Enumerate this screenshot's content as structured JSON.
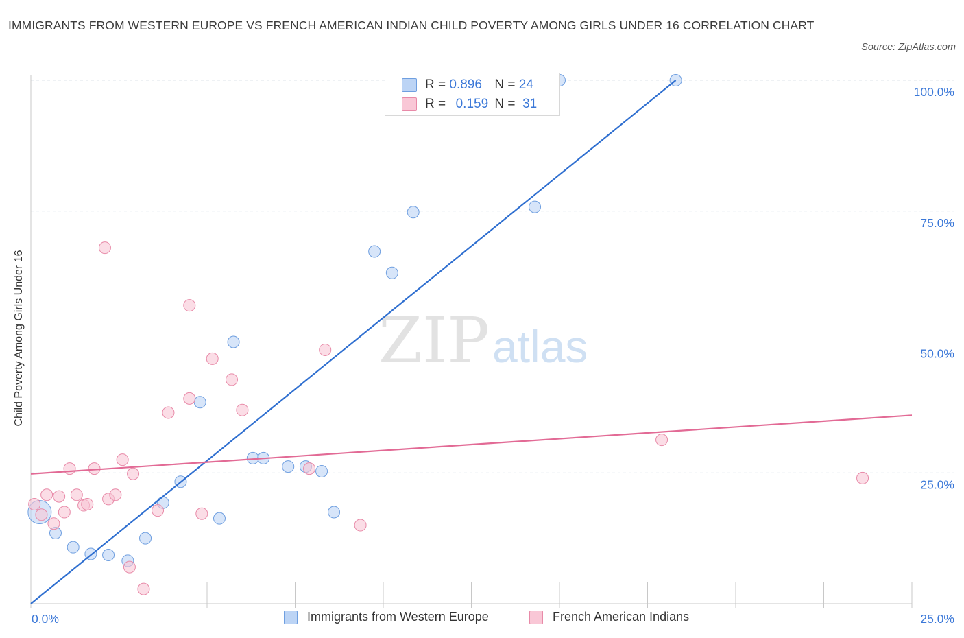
{
  "title": "IMMIGRANTS FROM WESTERN EUROPE VS FRENCH AMERICAN INDIAN CHILD POVERTY AMONG GIRLS UNDER 16 CORRELATION CHART",
  "source": "Source: ZipAtlas.com",
  "watermark": {
    "zip": "ZIP",
    "atlas": "atlas"
  },
  "legend": {
    "r_label": "R =",
    "n_label": "N =",
    "rows": [
      {
        "r": "0.896",
        "n": "24"
      },
      {
        "r": "0.159",
        "n": "31"
      }
    ]
  },
  "colors": {
    "blue_fill": "#bcd4f5",
    "blue_stroke": "#6f9fe0",
    "blue_line": "#2f6fd0",
    "pink_fill": "#f9c7d6",
    "pink_stroke": "#e88aa8",
    "pink_line": "#e26a95",
    "tick_label": "#3b78d8",
    "grid": "#dde3ea"
  },
  "chart_data": {
    "type": "scatter",
    "title": "IMMIGRANTS FROM WESTERN EUROPE VS FRENCH AMERICAN INDIAN CHILD POVERTY AMONG GIRLS UNDER 16 CORRELATION CHART",
    "xlabel": "",
    "ylabel": "Child Poverty Among Girls Under 16",
    "xlim": [
      0,
      25
    ],
    "ylim": [
      0,
      100
    ],
    "x_tick_labels": [
      "0.0%",
      "25.0%"
    ],
    "y_tick_labels": [
      "100.0%",
      "75.0%",
      "50.0%",
      "25.0%"
    ],
    "y_ticks": [
      100,
      75,
      50,
      25
    ],
    "grid": true,
    "legend_position": "top-center",
    "series": [
      {
        "name": "Immigrants from Western Europe",
        "color": "blue",
        "trend": {
          "x": [
            0,
            18.3
          ],
          "y": [
            0,
            100
          ]
        },
        "points": [
          {
            "x": 0.25,
            "y": 17.5,
            "big": true
          },
          {
            "x": 0.7,
            "y": 13.5
          },
          {
            "x": 1.2,
            "y": 10.8
          },
          {
            "x": 1.7,
            "y": 9.5
          },
          {
            "x": 2.2,
            "y": 9.3
          },
          {
            "x": 2.75,
            "y": 8.2
          },
          {
            "x": 3.25,
            "y": 12.5
          },
          {
            "x": 3.75,
            "y": 19.3
          },
          {
            "x": 4.25,
            "y": 23.3
          },
          {
            "x": 4.8,
            "y": 38.5
          },
          {
            "x": 5.35,
            "y": 16.3
          },
          {
            "x": 5.75,
            "y": 50.0
          },
          {
            "x": 6.3,
            "y": 27.8
          },
          {
            "x": 6.6,
            "y": 27.8
          },
          {
            "x": 7.3,
            "y": 26.2
          },
          {
            "x": 7.8,
            "y": 26.2
          },
          {
            "x": 8.25,
            "y": 25.3
          },
          {
            "x": 8.6,
            "y": 17.5
          },
          {
            "x": 9.75,
            "y": 67.3
          },
          {
            "x": 10.25,
            "y": 63.2
          },
          {
            "x": 10.85,
            "y": 74.8
          },
          {
            "x": 14.3,
            "y": 75.8
          },
          {
            "x": 15.0,
            "y": 100.0
          },
          {
            "x": 18.3,
            "y": 100.0
          }
        ]
      },
      {
        "name": "French American Indians",
        "color": "pink",
        "trend": {
          "x": [
            0,
            25
          ],
          "y": [
            24.8,
            36.0
          ]
        },
        "points": [
          {
            "x": 0.1,
            "y": 19.0
          },
          {
            "x": 0.3,
            "y": 17.0
          },
          {
            "x": 0.45,
            "y": 20.8
          },
          {
            "x": 0.65,
            "y": 15.3
          },
          {
            "x": 0.8,
            "y": 20.5
          },
          {
            "x": 0.95,
            "y": 17.5
          },
          {
            "x": 1.1,
            "y": 25.8
          },
          {
            "x": 1.3,
            "y": 20.8
          },
          {
            "x": 1.5,
            "y": 18.8
          },
          {
            "x": 1.6,
            "y": 19.0
          },
          {
            "x": 1.8,
            "y": 25.8
          },
          {
            "x": 2.1,
            "y": 68.0
          },
          {
            "x": 2.2,
            "y": 20.0
          },
          {
            "x": 2.4,
            "y": 20.8
          },
          {
            "x": 2.6,
            "y": 27.5
          },
          {
            "x": 2.8,
            "y": 7.0
          },
          {
            "x": 2.9,
            "y": 24.8
          },
          {
            "x": 3.2,
            "y": 2.8
          },
          {
            "x": 3.6,
            "y": 17.8
          },
          {
            "x": 3.9,
            "y": 36.5
          },
          {
            "x": 4.5,
            "y": 57.0
          },
          {
            "x": 4.5,
            "y": 39.2
          },
          {
            "x": 4.85,
            "y": 17.2
          },
          {
            "x": 5.15,
            "y": 46.8
          },
          {
            "x": 5.7,
            "y": 42.8
          },
          {
            "x": 6.0,
            "y": 37.0
          },
          {
            "x": 7.9,
            "y": 25.8
          },
          {
            "x": 8.35,
            "y": 48.5
          },
          {
            "x": 9.35,
            "y": 15.0
          },
          {
            "x": 17.9,
            "y": 31.3
          },
          {
            "x": 23.6,
            "y": 24.0
          }
        ]
      }
    ]
  }
}
